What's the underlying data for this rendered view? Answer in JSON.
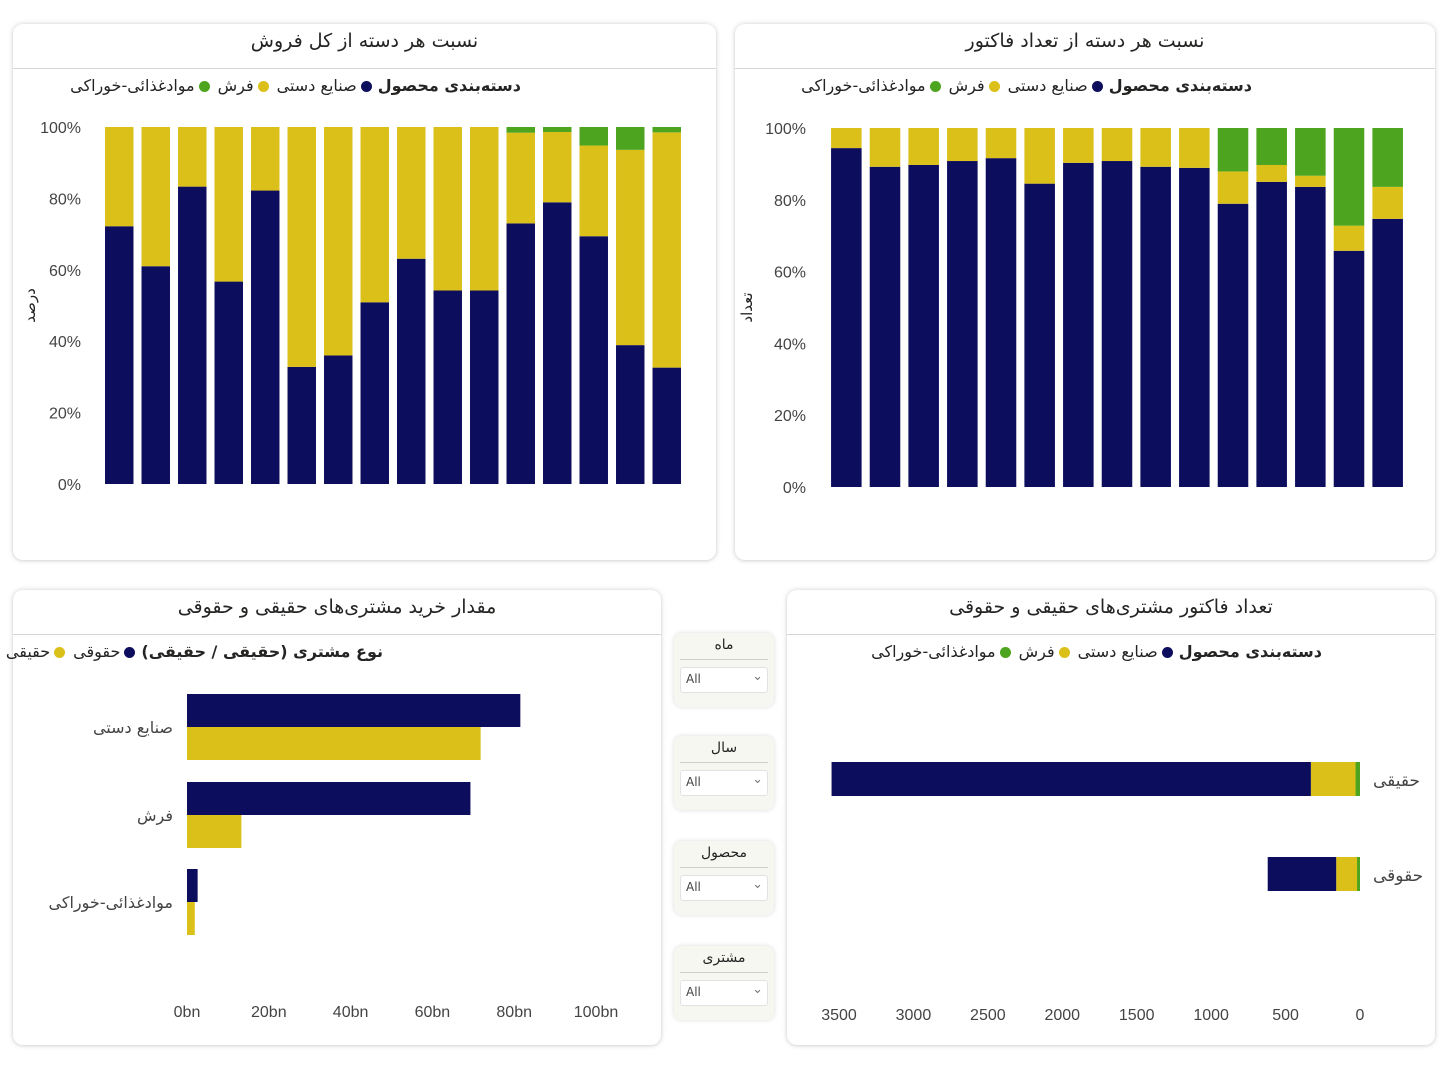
{
  "colors": {
    "handicraft": "#0d0d5e",
    "carpet": "#dcc01a",
    "food": "#4da41e"
  },
  "charts": [
    {
      "title": "نسبت هر دسته از کل فروش",
      "legend_title": "دسته‌بندی محصول",
      "legend_items": [
        {
          "label": "صنایع دستی",
          "color": "#0d0d5e"
        },
        {
          "label": "فرش",
          "color": "#dcc01a"
        },
        {
          "label": "موادغذائی-خوراکی",
          "color": "#4da41e"
        }
      ],
      "ylabel": "درصد",
      "y_ticks": [
        "100%",
        "80%",
        "60%",
        "40%",
        "20%",
        "0%"
      ]
    },
    {
      "title": "نسبت هر دسته از تعداد فاکتور",
      "legend_title": "دسته‌بندی محصول",
      "legend_items": [
        {
          "label": "صنایع دستی",
          "color": "#0d0d5e"
        },
        {
          "label": "فرش",
          "color": "#dcc01a"
        },
        {
          "label": "موادغذائی-خوراکی",
          "color": "#4da41e"
        }
      ],
      "ylabel": "تعداد",
      "y_ticks": [
        "100%",
        "80%",
        "60%",
        "40%",
        "20%",
        "0%"
      ]
    },
    {
      "title": "مقدار خرید مشتری‌های حقیقی و حقوقی",
      "legend_title": "نوع مشتری (حقیقی / حقیقی)",
      "legend_items": [
        {
          "label": "حقوقی",
          "color": "#0d0d5e"
        },
        {
          "label": "حقیقی",
          "color": "#dcc01a"
        }
      ],
      "x_ticks": [
        "0bn",
        "20bn",
        "40bn",
        "60bn",
        "80bn",
        "100bn"
      ]
    },
    {
      "title": "تعداد فاکتور مشتری‌های حقیقی و حقوقی",
      "legend_title": "دسته‌بندی محصول",
      "legend_items": [
        {
          "label": "صنایع دستی",
          "color": "#0d0d5e"
        },
        {
          "label": "فرش",
          "color": "#dcc01a"
        },
        {
          "label": "موادغذائی-خوراکی",
          "color": "#4da41e"
        }
      ],
      "x_ticks": [
        "3500",
        "3000",
        "2500",
        "2000",
        "1500",
        "1000",
        "500",
        "0"
      ]
    }
  ],
  "slicers": [
    {
      "title": "ماه",
      "value": "All"
    },
    {
      "title": "سال",
      "value": "All"
    },
    {
      "title": "محصول",
      "value": "All"
    },
    {
      "title": "مشتری",
      "value": "All"
    }
  ],
  "chart_data": [
    {
      "type": "bar",
      "stacked": "100%",
      "ylim": [
        0,
        100
      ],
      "series": [
        {
          "values": [
            72.2,
            61,
            83.3,
            56.7,
            82.2,
            32.8,
            36,
            50.9,
            63.1,
            54.2,
            54.2,
            73,
            78.9,
            69.4,
            38.9,
            32.6
          ]
        },
        {
          "values": [
            27.8,
            39,
            16.7,
            43.3,
            17.8,
            67.2,
            64,
            49.1,
            36.9,
            45.8,
            45.8,
            25.4,
            19.7,
            25.4,
            54.7,
            65.9
          ]
        },
        {
          "values": [
            0,
            0,
            0,
            0,
            0,
            0,
            0,
            0,
            0,
            0,
            0,
            1.6,
            1.4,
            5.2,
            6.4,
            1.5
          ]
        }
      ]
    },
    {
      "type": "bar",
      "stacked": "100%",
      "ylim": [
        0,
        100
      ],
      "series": [
        {
          "values": [
            94.4,
            89.2,
            89.7,
            90.8,
            91.6,
            84.5,
            90.3,
            90.8,
            89.2,
            88.9,
            78.9,
            85,
            83.6,
            65.8,
            74.7
          ]
        },
        {
          "values": [
            5.6,
            10.8,
            10.3,
            9.2,
            8.4,
            15.5,
            9.7,
            9.2,
            10.8,
            11.1,
            9,
            4.7,
            3.1,
            7,
            8.9
          ]
        },
        {
          "values": [
            0,
            0,
            0,
            0,
            0,
            0,
            0,
            0,
            0,
            0,
            12.1,
            10.3,
            13.3,
            27.2,
            16.4
          ]
        }
      ]
    },
    {
      "type": "bar",
      "orientation": "horizontal",
      "categories": [
        "صنایع دستی",
        "فرش",
        "موادغذائی-خوراکی"
      ],
      "xlim": [
        0,
        100
      ],
      "series": [
        {
          "name": "حقوقی",
          "values": [
            81.5,
            69.3,
            2.6
          ]
        },
        {
          "name": "حقیقی",
          "values": [
            71.8,
            13.3,
            1.9
          ]
        }
      ]
    },
    {
      "type": "bar",
      "orientation": "horizontal",
      "stacked": true,
      "categories": [
        "حقیقی",
        "حقوقی"
      ],
      "xlim": [
        0,
        3500
      ],
      "series": [
        {
          "name": "صنایع دستی",
          "values": [
            3220,
            460
          ]
        },
        {
          "name": "فرش",
          "values": [
            300,
            140
          ]
        },
        {
          "name": "موادغذائی-خوراکی",
          "values": [
            30,
            20
          ]
        }
      ]
    }
  ]
}
